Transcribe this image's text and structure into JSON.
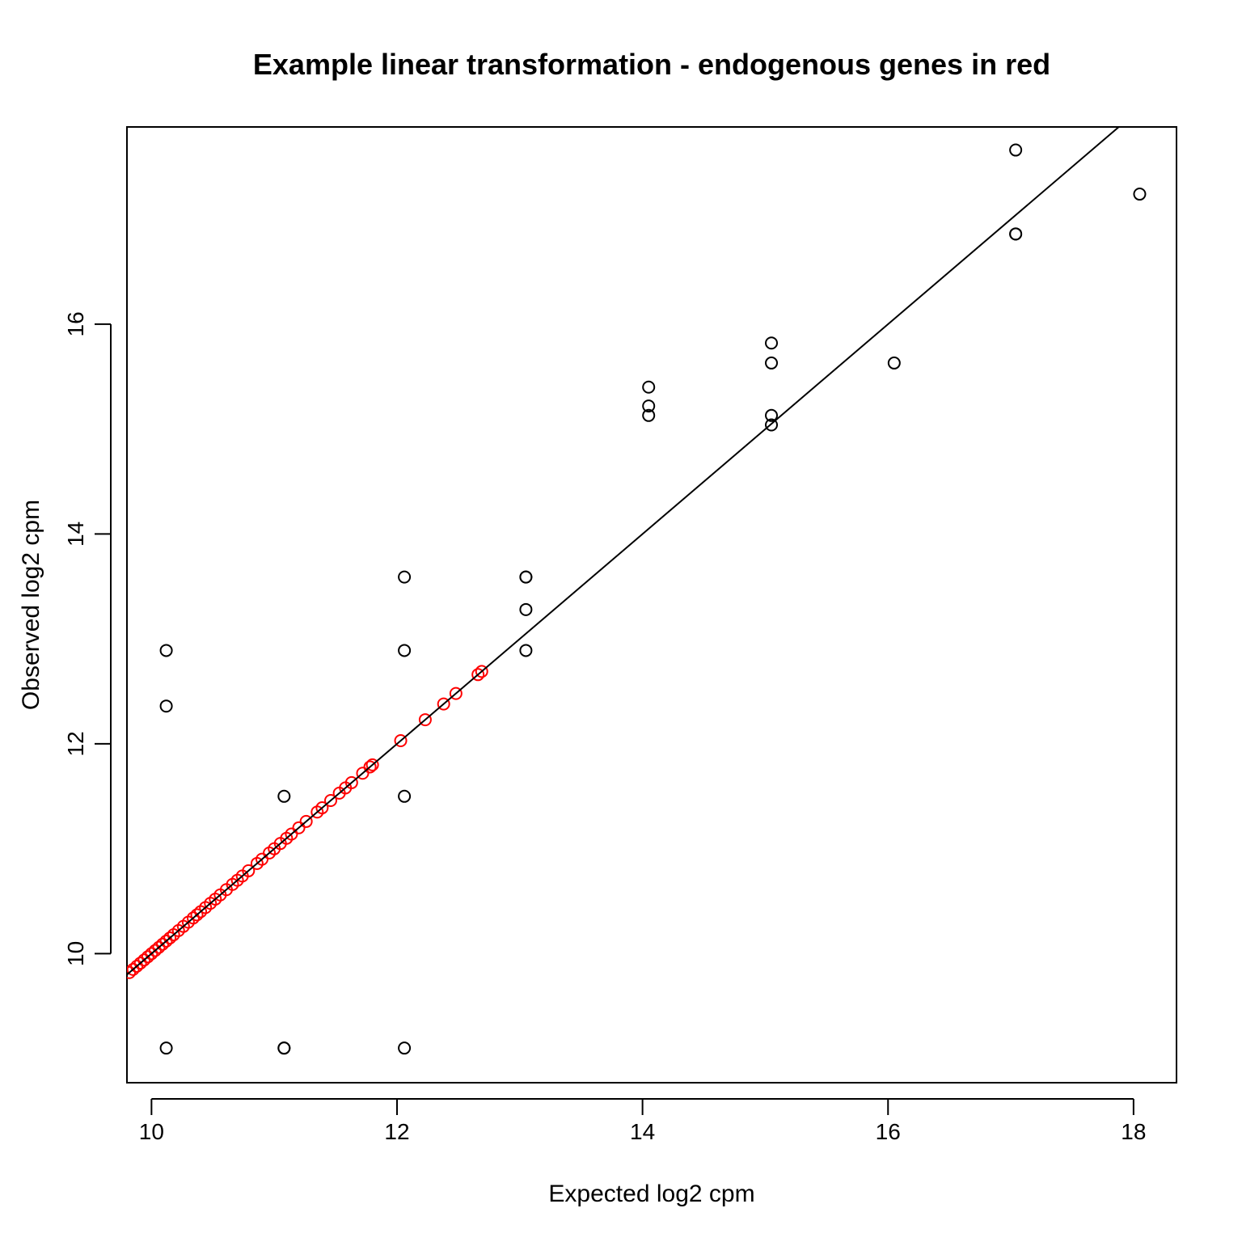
{
  "chart_data": {
    "type": "scatter",
    "title": "Example linear transformation - endogenous genes in red",
    "xlabel": "Expected log2 cpm",
    "ylabel": "Observed log2 cpm",
    "xlim": [
      9.8,
      18.35
    ],
    "ylim": [
      8.77,
      17.88
    ],
    "x_ticks": [
      10,
      12,
      14,
      16,
      18
    ],
    "y_ticks": [
      10,
      12,
      14,
      16
    ],
    "grid": false,
    "colors": {
      "spike_in": "#000000",
      "endogenous": "#ff0000",
      "line": "#000000"
    },
    "fit_line": {
      "intercept": 0,
      "slope": 1
    },
    "series": [
      {
        "color": "#000000",
        "points": [
          [
            10.12,
            12.89
          ],
          [
            10.12,
            12.36
          ],
          [
            10.12,
            9.1
          ],
          [
            11.08,
            11.5
          ],
          [
            11.08,
            9.1
          ],
          [
            11.08,
            9.1
          ],
          [
            12.06,
            13.59
          ],
          [
            12.06,
            12.89
          ],
          [
            12.06,
            11.5
          ],
          [
            12.06,
            9.1
          ],
          [
            13.05,
            13.59
          ],
          [
            13.05,
            13.59
          ],
          [
            13.05,
            13.28
          ],
          [
            13.05,
            12.89
          ],
          [
            14.05,
            15.4
          ],
          [
            14.05,
            15.22
          ],
          [
            14.05,
            15.13
          ],
          [
            15.05,
            15.82
          ],
          [
            15.05,
            15.63
          ],
          [
            15.05,
            15.13
          ],
          [
            15.05,
            15.04
          ],
          [
            16.05,
            15.63
          ],
          [
            17.04,
            17.66
          ],
          [
            17.04,
            16.86
          ],
          [
            17.04,
            16.86
          ],
          [
            18.05,
            17.24
          ]
        ]
      },
      {
        "color": "#ff0000",
        "points": [
          [
            9.82,
            9.82
          ],
          [
            9.85,
            9.85
          ],
          [
            9.88,
            9.88
          ],
          [
            9.91,
            9.91
          ],
          [
            9.94,
            9.94
          ],
          [
            9.97,
            9.97
          ],
          [
            10.0,
            10.0
          ],
          [
            10.03,
            10.03
          ],
          [
            10.06,
            10.06
          ],
          [
            10.09,
            10.09
          ],
          [
            10.12,
            10.12
          ],
          [
            10.15,
            10.15
          ],
          [
            10.18,
            10.18
          ],
          [
            10.22,
            10.22
          ],
          [
            10.26,
            10.26
          ],
          [
            10.3,
            10.3
          ],
          [
            10.34,
            10.34
          ],
          [
            10.37,
            10.37
          ],
          [
            10.4,
            10.4
          ],
          [
            10.44,
            10.44
          ],
          [
            10.48,
            10.48
          ],
          [
            10.52,
            10.52
          ],
          [
            10.56,
            10.56
          ],
          [
            10.61,
            10.61
          ],
          [
            10.66,
            10.66
          ],
          [
            10.7,
            10.7
          ],
          [
            10.74,
            10.74
          ],
          [
            10.79,
            10.79
          ],
          [
            10.86,
            10.86
          ],
          [
            10.9,
            10.9
          ],
          [
            10.96,
            10.96
          ],
          [
            11.0,
            11.0
          ],
          [
            11.05,
            11.05
          ],
          [
            11.1,
            11.1
          ],
          [
            11.14,
            11.14
          ],
          [
            11.2,
            11.2
          ],
          [
            11.26,
            11.26
          ],
          [
            11.35,
            11.35
          ],
          [
            11.39,
            11.39
          ],
          [
            11.46,
            11.46
          ],
          [
            11.53,
            11.53
          ],
          [
            11.58,
            11.58
          ],
          [
            11.63,
            11.63
          ],
          [
            11.72,
            11.72
          ],
          [
            11.78,
            11.78
          ],
          [
            11.8,
            11.8
          ],
          [
            12.03,
            12.03
          ],
          [
            12.23,
            12.23
          ],
          [
            12.38,
            12.38
          ],
          [
            12.48,
            12.48
          ],
          [
            12.66,
            12.66
          ],
          [
            12.69,
            12.69
          ]
        ]
      }
    ]
  }
}
